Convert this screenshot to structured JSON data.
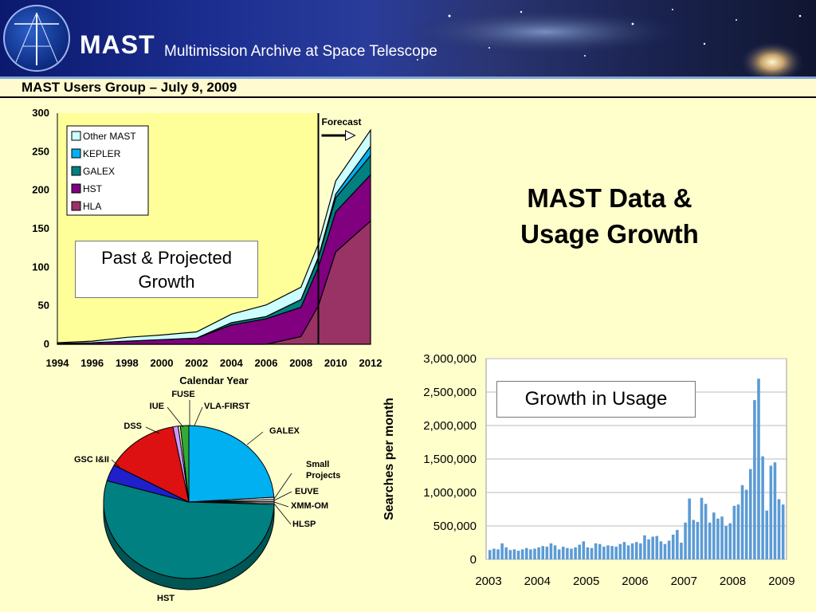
{
  "header": {
    "brand": "MAST",
    "subtitle": "Multimission Archive at Space Telescope",
    "meeting": "MAST Users Group – July 9, 2009"
  },
  "slide": {
    "title_line1": "MAST Data &",
    "title_line2": "Usage Growth",
    "callout_growth": "Past & Projected Growth",
    "callout_usage": "Growth in Usage"
  },
  "colors": {
    "Other MAST": "#ccffff",
    "KEPLER": "#00b0f0",
    "GALEX": "#008080",
    "HST": "#800080",
    "HLA": "#993366"
  },
  "chart_data": [
    {
      "type": "area",
      "stacked": true,
      "x": [
        1994,
        1996,
        1998,
        2000,
        2002,
        2004,
        2006,
        2008,
        2009,
        2010,
        2012
      ],
      "series": [
        {
          "name": "HLA",
          "values": [
            0,
            0,
            0,
            0,
            0,
            0,
            0,
            10,
            50,
            120,
            160
          ]
        },
        {
          "name": "HST",
          "values": [
            1,
            2,
            4,
            6,
            8,
            25,
            33,
            38,
            50,
            52,
            60
          ]
        },
        {
          "name": "GALEX",
          "values": [
            0,
            0,
            0,
            0,
            0,
            3,
            3,
            10,
            12,
            18,
            25
          ]
        },
        {
          "name": "KEPLER",
          "values": [
            0,
            0,
            0,
            0,
            0,
            0,
            0,
            0,
            1,
            5,
            12
          ]
        },
        {
          "name": "Other MAST",
          "values": [
            1,
            2,
            5,
            6,
            8,
            11,
            15,
            16,
            17,
            17,
            21
          ]
        }
      ],
      "xlabel": "Calendar Year",
      "xticks": [
        "1994",
        "1996",
        "1998",
        "2000",
        "2002",
        "2004",
        "2006",
        "2008",
        "2010",
        "2012"
      ],
      "yticks": [
        "0",
        "50",
        "100",
        "150",
        "200",
        "250",
        "300"
      ],
      "ylim": [
        0,
        300
      ],
      "xlim": [
        1994,
        2012
      ],
      "forecast_label": "Forecast",
      "forecast_x": 2009,
      "legend": [
        "Other MAST",
        "KEPLER",
        "GALEX",
        "HST",
        "HLA"
      ],
      "legend_position": "top-left"
    },
    {
      "type": "pie",
      "slices": [
        {
          "name": "GALEX",
          "value": 24,
          "color": "#00b0f0"
        },
        {
          "name": "Small Projects",
          "value": 0.5,
          "color": "#e0e0e0"
        },
        {
          "name": "EUVE",
          "value": 0.4,
          "color": "#ffffff"
        },
        {
          "name": "XMM-OM",
          "value": 0.3,
          "color": "#ffffff"
        },
        {
          "name": "HLSP",
          "value": 0.3,
          "color": "#eeeeee"
        },
        {
          "name": "HST",
          "value": 54,
          "color": "#008080"
        },
        {
          "name": "GSC I&II",
          "value": 3.5,
          "color": "#1f1fcc"
        },
        {
          "name": "DSS",
          "value": 14,
          "color": "#dd1111"
        },
        {
          "name": "IUE",
          "value": 1.0,
          "color": "#cc99ff"
        },
        {
          "name": "FUSE",
          "value": 0.4,
          "color": "#ffffcc"
        },
        {
          "name": "VLA-FIRST",
          "value": 1.6,
          "color": "#33aa33"
        }
      ]
    },
    {
      "type": "bar",
      "ylabel": "Searches per month",
      "ylim": [
        0,
        3000000
      ],
      "yticks": [
        "0",
        "500,000",
        "1,000,000",
        "1,500,000",
        "2,000,000",
        "2,500,000",
        "3,000,000"
      ],
      "xticks": [
        "2003",
        "2004",
        "2005",
        "2006",
        "2007",
        "2008",
        "2009"
      ],
      "x_start": "2003-01",
      "grid": true,
      "values": [
        140000,
        160000,
        150000,
        240000,
        180000,
        140000,
        150000,
        130000,
        150000,
        170000,
        150000,
        160000,
        180000,
        200000,
        190000,
        240000,
        210000,
        150000,
        190000,
        170000,
        160000,
        180000,
        220000,
        270000,
        180000,
        170000,
        240000,
        230000,
        190000,
        210000,
        200000,
        190000,
        230000,
        260000,
        210000,
        240000,
        260000,
        240000,
        360000,
        300000,
        340000,
        350000,
        270000,
        230000,
        280000,
        370000,
        440000,
        250000,
        550000,
        910000,
        590000,
        560000,
        920000,
        830000,
        550000,
        700000,
        610000,
        640000,
        500000,
        540000,
        800000,
        820000,
        1110000,
        1040000,
        1350000,
        2380000,
        2700000,
        1540000,
        730000,
        1400000,
        1450000,
        900000,
        820000
      ]
    }
  ]
}
